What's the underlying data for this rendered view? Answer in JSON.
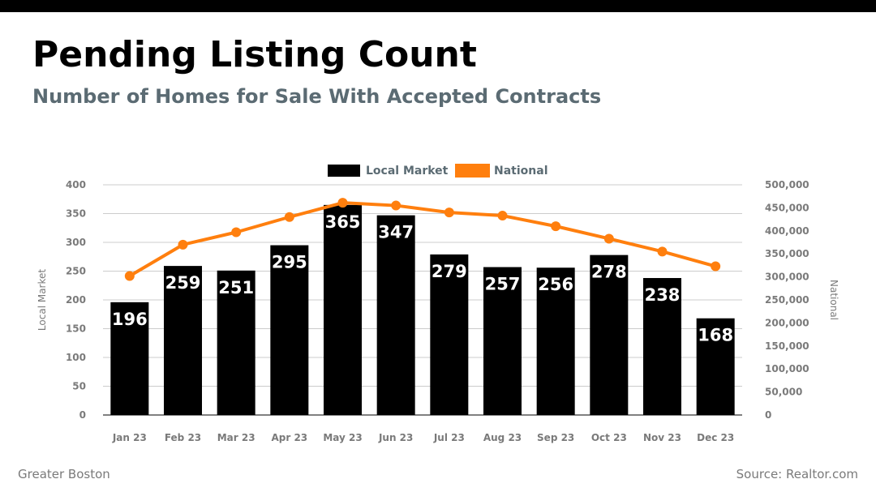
{
  "header": {
    "title": "Pending Listing Count",
    "subtitle": "Number of Homes for Sale With Accepted Contracts"
  },
  "footer": {
    "region": "Greater Boston",
    "source": "Source: Realtor.com"
  },
  "colors": {
    "local": "#000000",
    "national": "#ff7f0e",
    "grid": "#cccccc",
    "topbar": "#000000"
  },
  "chart_data": {
    "type": "bar",
    "categories": [
      "Jan 23",
      "Feb 23",
      "Mar 23",
      "Apr 23",
      "May 23",
      "Jun 23",
      "Jul 23",
      "Aug 23",
      "Sep 23",
      "Oct 23",
      "Nov 23",
      "Dec 23"
    ],
    "series": [
      {
        "name": "Local Market",
        "type": "bar",
        "axis": "left",
        "values": [
          196,
          259,
          251,
          295,
          365,
          347,
          279,
          257,
          256,
          278,
          238,
          168
        ],
        "data_labels": [
          "196",
          "259",
          "251",
          "295",
          "365",
          "347",
          "279",
          "257",
          "256",
          "278",
          "238",
          "168"
        ]
      },
      {
        "name": "National",
        "type": "line",
        "axis": "right",
        "values": [
          302000,
          370000,
          397000,
          430000,
          461000,
          455000,
          440000,
          433000,
          410000,
          383000,
          355000,
          323000
        ]
      }
    ],
    "y_left": {
      "label": "Local Market",
      "ylim": [
        0,
        400
      ],
      "ticks": [
        "0",
        "50",
        "100",
        "150",
        "200",
        "250",
        "300",
        "350",
        "400"
      ]
    },
    "y_right": {
      "label": "National",
      "ylim": [
        0,
        500000
      ],
      "ticks": [
        "0",
        "50,000",
        "100,000",
        "150,000",
        "200,000",
        "250,000",
        "300,000",
        "350,000",
        "400,000",
        "450,000",
        "500,000"
      ]
    },
    "legend": {
      "placement": "top-center",
      "entries": [
        "Local Market",
        "National"
      ]
    },
    "grid": true
  }
}
